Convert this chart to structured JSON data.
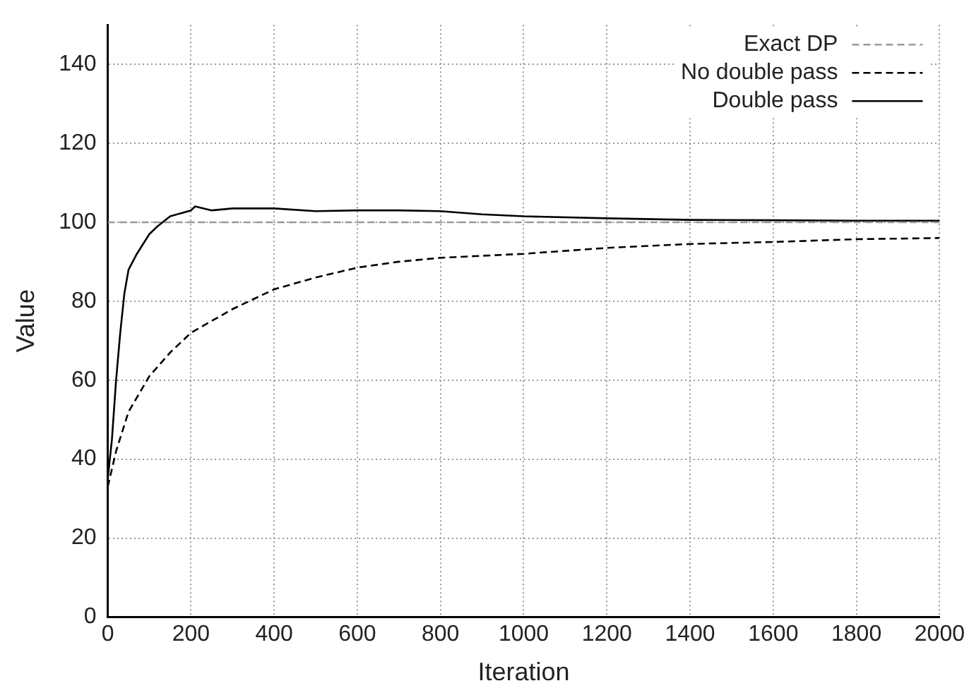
{
  "chart_data": {
    "type": "line",
    "xlabel": "Iteration",
    "ylabel": "Value",
    "xlim": [
      0,
      2000
    ],
    "xticks": [
      0,
      200,
      400,
      600,
      800,
      1000,
      1200,
      1400,
      1600,
      1800,
      2000
    ],
    "ylim": [
      0,
      150
    ],
    "yticks": [
      0,
      20,
      40,
      60,
      80,
      100,
      120,
      140
    ],
    "grid": true,
    "legend": "top right",
    "marker": "none",
    "series": [
      {
        "name": "Exact DP",
        "color": "#999999",
        "line_style": "dashed",
        "x": [
          0,
          2000
        ],
        "values": [
          100,
          100
        ]
      },
      {
        "name": "No double pass",
        "color": "#000000",
        "line_style": "dashed",
        "x": [
          0,
          20,
          50,
          100,
          150,
          200,
          300,
          400,
          500,
          600,
          700,
          800,
          1000,
          1200,
          1400,
          1600,
          1800,
          2000
        ],
        "values": [
          33,
          42,
          52,
          61,
          67,
          72,
          78,
          83,
          86,
          88.5,
          90,
          91,
          92,
          93.5,
          94.5,
          95,
          95.7,
          96
        ]
      },
      {
        "name": "Double pass",
        "color": "#000000",
        "line_style": "solid",
        "x": [
          0,
          10,
          20,
          30,
          40,
          50,
          70,
          100,
          120,
          150,
          200,
          210,
          250,
          300,
          400,
          500,
          600,
          700,
          800,
          900,
          1000,
          1200,
          1400,
          1600,
          1800,
          2000
        ],
        "values": [
          35,
          45,
          60,
          72,
          82,
          88,
          92,
          97,
          99,
          101.5,
          103,
          104,
          103,
          103.5,
          103.5,
          102.8,
          103,
          103,
          102.8,
          102,
          101.5,
          101,
          100.6,
          100.5,
          100.4,
          100.4
        ]
      }
    ]
  }
}
